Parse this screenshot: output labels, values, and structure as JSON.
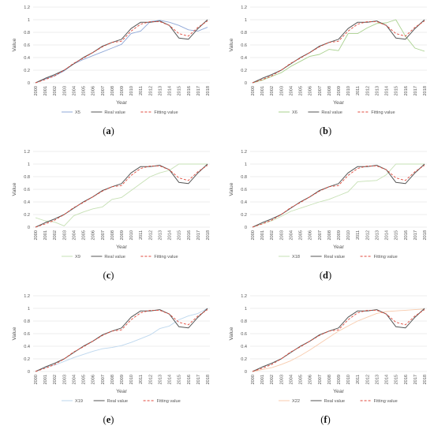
{
  "chart_data": [
    {
      "type": "line",
      "panel_label": "a",
      "xlabel": "Year",
      "ylabel": "Value",
      "ylim": [
        0,
        1.2
      ],
      "yticks": [
        "0",
        "0.2",
        "0.4",
        "0.6",
        "0.8",
        "1",
        "1.2"
      ],
      "grid": true,
      "legend_position": "bottom",
      "x": [
        "2000",
        "2001",
        "2002",
        "2003",
        "2004",
        "2005",
        "2006",
        "2007",
        "2008",
        "2009",
        "2010",
        "2011",
        "2012",
        "2013",
        "2014",
        "2015",
        "2016",
        "2017",
        "2018"
      ],
      "series": [
        {
          "name": "X5",
          "color": "#8fa8d8",
          "style": "solid",
          "values": [
            0,
            0.06,
            0.11,
            0.19,
            0.3,
            0.37,
            0.43,
            0.49,
            0.55,
            0.61,
            0.78,
            0.82,
            0.97,
            0.99,
            0.96,
            0.91,
            0.84,
            0.82,
            0.88
          ]
        },
        {
          "name": "Real value",
          "color": "#555555",
          "style": "solid",
          "values": [
            0,
            0.07,
            0.13,
            0.2,
            0.3,
            0.4,
            0.48,
            0.58,
            0.64,
            0.69,
            0.86,
            0.96,
            0.96,
            0.98,
            0.91,
            0.71,
            0.69,
            0.86,
            1.0
          ]
        },
        {
          "name": "Fitting value",
          "color": "#e04a3c",
          "style": "dashed",
          "values": [
            0,
            0.05,
            0.11,
            0.2,
            0.31,
            0.39,
            0.48,
            0.57,
            0.64,
            0.66,
            0.82,
            0.93,
            0.97,
            0.97,
            0.91,
            0.78,
            0.74,
            0.88,
            0.98
          ]
        }
      ]
    },
    {
      "type": "line",
      "panel_label": "b",
      "xlabel": "Year",
      "ylabel": "Value",
      "ylim": [
        0,
        1.2
      ],
      "yticks": [
        "0",
        "0.2",
        "0.4",
        "0.6",
        "0.8",
        "1",
        "1.2"
      ],
      "grid": true,
      "legend_position": "bottom",
      "x": [
        "2000",
        "2001",
        "2002",
        "2003",
        "2004",
        "2005",
        "2006",
        "2007",
        "2008",
        "2009",
        "2010",
        "2011",
        "2012",
        "2013",
        "2014",
        "2015",
        "2016",
        "2017",
        "2018"
      ],
      "series": [
        {
          "name": "X6",
          "color": "#a9d18e",
          "style": "solid",
          "values": [
            0,
            0.04,
            0.1,
            0.16,
            0.26,
            0.34,
            0.42,
            0.45,
            0.53,
            0.51,
            0.78,
            0.78,
            0.87,
            0.94,
            0.95,
            1.0,
            0.74,
            0.55,
            0.5
          ]
        },
        {
          "name": "Real value",
          "color": "#555555",
          "style": "solid",
          "values": [
            0,
            0.07,
            0.13,
            0.2,
            0.3,
            0.4,
            0.48,
            0.58,
            0.64,
            0.69,
            0.86,
            0.96,
            0.96,
            0.98,
            0.91,
            0.71,
            0.69,
            0.86,
            1.0
          ]
        },
        {
          "name": "Fitting value",
          "color": "#e04a3c",
          "style": "dashed",
          "values": [
            0,
            0.05,
            0.11,
            0.2,
            0.31,
            0.39,
            0.48,
            0.57,
            0.64,
            0.66,
            0.82,
            0.93,
            0.97,
            0.97,
            0.91,
            0.78,
            0.74,
            0.88,
            0.98
          ]
        }
      ]
    },
    {
      "type": "line",
      "panel_label": "c",
      "xlabel": "Year",
      "ylabel": "Value",
      "ylim": [
        0,
        1.2
      ],
      "yticks": [
        "0",
        "0.2",
        "0.4",
        "0.6",
        "0.8",
        "1",
        "1.2"
      ],
      "grid": true,
      "legend_position": "bottom",
      "x": [
        "2000",
        "2001",
        "2002",
        "2003",
        "2004",
        "2005",
        "2006",
        "2007",
        "2008",
        "2009",
        "2010",
        "2011",
        "2012",
        "2013",
        "2014",
        "2015",
        "2016",
        "2017",
        "2018"
      ],
      "series": [
        {
          "name": "X9",
          "color": "#c6e0b4",
          "style": "solid",
          "values": [
            0.15,
            0.1,
            0.08,
            0.02,
            0.18,
            0.24,
            0.29,
            0.32,
            0.44,
            0.47,
            0.58,
            0.69,
            0.8,
            0.86,
            0.9,
            1.0,
            1.0,
            1.0,
            1.0
          ]
        },
        {
          "name": "Real value",
          "color": "#555555",
          "style": "solid",
          "values": [
            0,
            0.07,
            0.13,
            0.2,
            0.3,
            0.4,
            0.48,
            0.58,
            0.64,
            0.69,
            0.86,
            0.96,
            0.96,
            0.98,
            0.91,
            0.71,
            0.69,
            0.86,
            1.0
          ]
        },
        {
          "name": "Fitting value",
          "color": "#e04a3c",
          "style": "dashed",
          "values": [
            0,
            0.05,
            0.11,
            0.2,
            0.31,
            0.39,
            0.48,
            0.57,
            0.64,
            0.66,
            0.82,
            0.93,
            0.97,
            0.97,
            0.91,
            0.78,
            0.74,
            0.88,
            0.98
          ]
        }
      ]
    },
    {
      "type": "line",
      "panel_label": "d",
      "xlabel": "Year",
      "ylabel": "Value",
      "ylim": [
        0,
        1.2
      ],
      "yticks": [
        "0",
        "0.2",
        "0.4",
        "0.6",
        "0.8",
        "1",
        "1.2"
      ],
      "grid": true,
      "legend_position": "bottom",
      "x": [
        "2000",
        "2001",
        "2002",
        "2003",
        "2004",
        "2005",
        "2006",
        "2007",
        "2008",
        "2009",
        "2010",
        "2011",
        "2012",
        "2013",
        "2014",
        "2015",
        "2016",
        "2017",
        "2018"
      ],
      "series": [
        {
          "name": "X18",
          "color": "#c6e0b4",
          "style": "solid",
          "values": [
            0,
            0.05,
            0.1,
            0.17,
            0.25,
            0.3,
            0.35,
            0.4,
            0.44,
            0.5,
            0.56,
            0.72,
            0.73,
            0.74,
            0.83,
            1.0,
            1.0,
            1.0,
            1.0
          ]
        },
        {
          "name": "Real value",
          "color": "#555555",
          "style": "solid",
          "values": [
            0,
            0.07,
            0.13,
            0.2,
            0.3,
            0.4,
            0.48,
            0.58,
            0.64,
            0.69,
            0.86,
            0.96,
            0.96,
            0.98,
            0.91,
            0.71,
            0.69,
            0.86,
            1.0
          ]
        },
        {
          "name": "Fitting value",
          "color": "#e04a3c",
          "style": "dashed",
          "values": [
            0,
            0.05,
            0.11,
            0.2,
            0.31,
            0.39,
            0.48,
            0.57,
            0.64,
            0.66,
            0.82,
            0.93,
            0.97,
            0.97,
            0.91,
            0.78,
            0.74,
            0.88,
            0.98
          ]
        }
      ]
    },
    {
      "type": "line",
      "panel_label": "e",
      "xlabel": "Year",
      "ylabel": "Value",
      "ylim": [
        0,
        1.2
      ],
      "yticks": [
        "0",
        "0.2",
        "0.4",
        "0.6",
        "0.8",
        "1",
        "1.2"
      ],
      "grid": true,
      "legend_position": "bottom",
      "x": [
        "2000",
        "2001",
        "2002",
        "2003",
        "2004",
        "2005",
        "2006",
        "2007",
        "2008",
        "2009",
        "2010",
        "2011",
        "2012",
        "2013",
        "2014",
        "2015",
        "2016",
        "2017",
        "2018"
      ],
      "series": [
        {
          "name": "X19",
          "color": "#bdd7ee",
          "style": "solid",
          "values": [
            0,
            0.06,
            0.1,
            0.16,
            0.22,
            0.27,
            0.32,
            0.36,
            0.38,
            0.41,
            0.46,
            0.52,
            0.58,
            0.68,
            0.72,
            0.82,
            0.88,
            0.92,
            1.0
          ]
        },
        {
          "name": "Real value",
          "color": "#555555",
          "style": "solid",
          "values": [
            0,
            0.07,
            0.13,
            0.2,
            0.3,
            0.4,
            0.48,
            0.58,
            0.64,
            0.69,
            0.86,
            0.96,
            0.96,
            0.98,
            0.91,
            0.71,
            0.69,
            0.86,
            1.0
          ]
        },
        {
          "name": "Fitting value",
          "color": "#e04a3c",
          "style": "dashed",
          "values": [
            0,
            0.05,
            0.11,
            0.2,
            0.31,
            0.39,
            0.48,
            0.57,
            0.64,
            0.66,
            0.82,
            0.93,
            0.97,
            0.97,
            0.91,
            0.78,
            0.74,
            0.88,
            0.98
          ]
        }
      ]
    },
    {
      "type": "line",
      "panel_label": "f",
      "xlabel": "Year",
      "ylabel": "Value",
      "ylim": [
        0,
        1.2
      ],
      "yticks": [
        "0",
        "0.2",
        "0.4",
        "0.6",
        "0.8",
        "1",
        "1.2"
      ],
      "grid": true,
      "legend_position": "bottom",
      "x": [
        "2000",
        "2001",
        "2002",
        "2003",
        "2004",
        "2005",
        "2006",
        "2007",
        "2008",
        "2009",
        "2010",
        "2011",
        "2012",
        "2013",
        "2014",
        "2015",
        "2016",
        "2017",
        "2018"
      ],
      "series": [
        {
          "name": "X22",
          "color": "#f8cbad",
          "style": "solid",
          "values": [
            0,
            0.03,
            0.06,
            0.11,
            0.17,
            0.25,
            0.34,
            0.44,
            0.54,
            0.64,
            0.72,
            0.8,
            0.86,
            0.92,
            0.95,
            0.96,
            0.97,
            0.98,
            0.99
          ]
        },
        {
          "name": "Real value",
          "color": "#555555",
          "style": "solid",
          "values": [
            0,
            0.07,
            0.13,
            0.2,
            0.3,
            0.4,
            0.48,
            0.58,
            0.64,
            0.69,
            0.86,
            0.96,
            0.96,
            0.98,
            0.91,
            0.71,
            0.69,
            0.86,
            1.0
          ]
        },
        {
          "name": "Fitting value",
          "color": "#e04a3c",
          "style": "dashed",
          "values": [
            0,
            0.05,
            0.11,
            0.2,
            0.31,
            0.39,
            0.48,
            0.57,
            0.64,
            0.66,
            0.82,
            0.93,
            0.97,
            0.97,
            0.91,
            0.78,
            0.74,
            0.88,
            0.98
          ]
        }
      ]
    }
  ],
  "colors": {
    "grid": "#d9d9d9",
    "tick_text": "#595959",
    "caption_text": "#111111"
  }
}
